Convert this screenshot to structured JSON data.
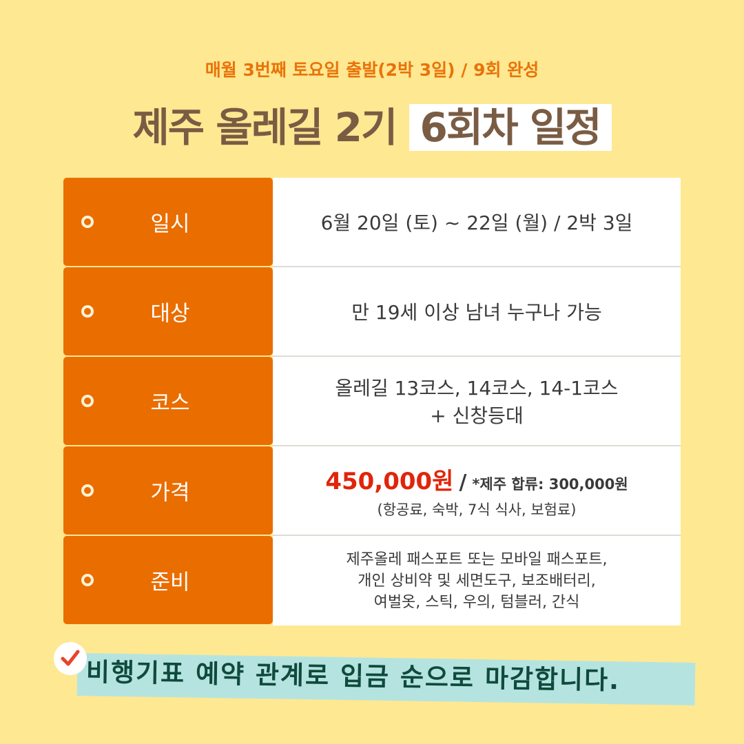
{
  "subtitle": "매월 3번째 토요일 출발(2박 3일) / 9회 완성",
  "title": {
    "main": "제주 올레길 2기",
    "highlight": "6회차 일정"
  },
  "rows": [
    {
      "label": "일시",
      "value": "6월 20일 (토) ~ 22일 (월) / 2박 3일"
    },
    {
      "label": "대상",
      "value": "만 19세 이상 남녀 누구나 가능"
    },
    {
      "label": "코스",
      "line1": "올레길 13코스, 14코스, 14-1코스",
      "line2": "+ 신창등대"
    },
    {
      "label": "가격",
      "price": "450,000원",
      "slash": "/",
      "join": "*제주 합류: 300,000원",
      "note": "(항공료, 숙박, 7식 식사, 보험료)"
    },
    {
      "label": "준비",
      "line1": "제주올레 패스포트 또는 모바일 패스포트,",
      "line2": "개인 상비약 및 세면도구, 보조배터리,",
      "line3": "여벌옷, 스틱, 우의, 텀블러, 간식"
    }
  ],
  "notice": "비행기표 예약 관계로 입금 순으로 마감합니다.",
  "icons": {
    "bullet": "circle-bullet-icon",
    "check": "checkmark-icon"
  },
  "colors": {
    "background": "#FEE892",
    "accent": "#EA6D00",
    "title": "#7A5C44",
    "price": "#E0250A",
    "banner": "#B5E4E0"
  }
}
